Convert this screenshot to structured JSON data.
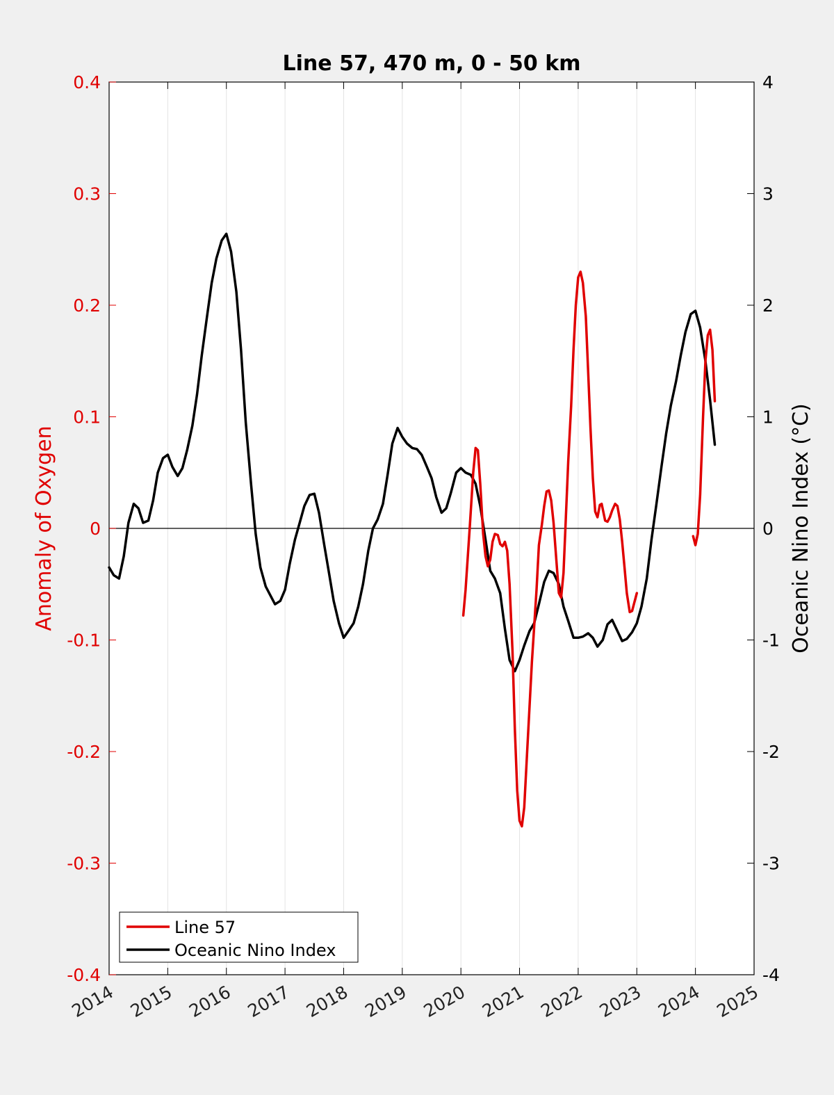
{
  "chart_data": {
    "type": "line",
    "title": "Line 57, 470 m, 0 - 50 km",
    "ylabel_left": "Anomaly of Oxygen",
    "ylabel_right": "Oceanic Nino Index (°C)",
    "xlim": [
      2014,
      2025
    ],
    "ylim_left": [
      -0.4,
      0.4
    ],
    "ylim_right": [
      -4,
      4
    ],
    "x_ticks": [
      2014,
      2015,
      2016,
      2017,
      2018,
      2019,
      2020,
      2021,
      2022,
      2023,
      2024,
      2025
    ],
    "y_ticks_left": [
      "-0.4",
      "-0.3",
      "-0.2",
      "-0.1",
      "0",
      "0.1",
      "0.2",
      "0.3",
      "0.4"
    ],
    "y_ticks_right": [
      "-4",
      "-3",
      "-2",
      "-1",
      "0",
      "1",
      "2",
      "3",
      "4"
    ],
    "grid": "vertical lines at x ticks",
    "zero_line": true,
    "legend_position": "bottom-left",
    "colors": {
      "oxygen": "#e00000",
      "oni": "#000000",
      "left_axis": "#e00000"
    },
    "series": [
      {
        "name": "Line 57",
        "axis": "left",
        "color": "#e00000",
        "segments": [
          [
            [
              2020.04,
              -0.078
            ],
            [
              2020.08,
              -0.055
            ],
            [
              2020.15,
              0.0
            ],
            [
              2020.21,
              0.05
            ],
            [
              2020.25,
              0.072
            ],
            [
              2020.29,
              0.07
            ],
            [
              2020.33,
              0.04
            ],
            [
              2020.38,
              -0.005
            ],
            [
              2020.42,
              -0.025
            ],
            [
              2020.46,
              -0.034
            ],
            [
              2020.5,
              -0.028
            ],
            [
              2020.54,
              -0.012
            ],
            [
              2020.58,
              -0.005
            ],
            [
              2020.63,
              -0.006
            ],
            [
              2020.67,
              -0.014
            ],
            [
              2020.71,
              -0.016
            ],
            [
              2020.75,
              -0.012
            ],
            [
              2020.79,
              -0.02
            ],
            [
              2020.83,
              -0.05
            ],
            [
              2020.88,
              -0.11
            ],
            [
              2020.92,
              -0.18
            ],
            [
              2020.96,
              -0.235
            ],
            [
              2021.0,
              -0.262
            ],
            [
              2021.04,
              -0.267
            ],
            [
              2021.08,
              -0.25
            ],
            [
              2021.13,
              -0.2
            ],
            [
              2021.21,
              -0.12
            ],
            [
              2021.29,
              -0.055
            ],
            [
              2021.33,
              -0.015
            ],
            [
              2021.38,
              0.003
            ],
            [
              2021.42,
              0.02
            ],
            [
              2021.46,
              0.033
            ],
            [
              2021.5,
              0.034
            ],
            [
              2021.54,
              0.025
            ],
            [
              2021.58,
              0.005
            ],
            [
              2021.63,
              -0.03
            ],
            [
              2021.67,
              -0.058
            ],
            [
              2021.71,
              -0.062
            ],
            [
              2021.75,
              -0.04
            ],
            [
              2021.79,
              0.01
            ],
            [
              2021.83,
              0.06
            ],
            [
              2021.88,
              0.11
            ],
            [
              2021.92,
              0.16
            ],
            [
              2021.96,
              0.2
            ],
            [
              2022.0,
              0.225
            ],
            [
              2022.04,
              0.23
            ],
            [
              2022.08,
              0.22
            ],
            [
              2022.13,
              0.19
            ],
            [
              2022.17,
              0.14
            ],
            [
              2022.21,
              0.09
            ],
            [
              2022.25,
              0.045
            ],
            [
              2022.29,
              0.015
            ],
            [
              2022.33,
              0.01
            ],
            [
              2022.37,
              0.021
            ],
            [
              2022.4,
              0.022
            ],
            [
              2022.46,
              0.007
            ],
            [
              2022.5,
              0.006
            ],
            [
              2022.54,
              0.01
            ],
            [
              2022.58,
              0.016
            ],
            [
              2022.63,
              0.022
            ],
            [
              2022.67,
              0.02
            ],
            [
              2022.71,
              0.008
            ],
            [
              2022.75,
              -0.012
            ],
            [
              2022.79,
              -0.035
            ],
            [
              2022.83,
              -0.058
            ],
            [
              2022.88,
              -0.075
            ],
            [
              2022.92,
              -0.074
            ],
            [
              2022.96,
              -0.066
            ],
            [
              2023.0,
              -0.058
            ]
          ],
          [
            [
              2023.96,
              -0.007
            ],
            [
              2024.0,
              -0.015
            ],
            [
              2024.04,
              -0.005
            ],
            [
              2024.08,
              0.03
            ],
            [
              2024.13,
              0.1
            ],
            [
              2024.17,
              0.15
            ],
            [
              2024.21,
              0.173
            ],
            [
              2024.25,
              0.178
            ],
            [
              2024.29,
              0.16
            ],
            [
              2024.33,
              0.114
            ]
          ]
        ]
      },
      {
        "name": "Oceanic Nino Index",
        "axis": "right",
        "color": "#000000",
        "points": [
          [
            2014.0,
            -0.35
          ],
          [
            2014.08,
            -0.42
          ],
          [
            2014.17,
            -0.45
          ],
          [
            2014.25,
            -0.25
          ],
          [
            2014.33,
            0.05
          ],
          [
            2014.42,
            0.22
          ],
          [
            2014.5,
            0.18
          ],
          [
            2014.58,
            0.05
          ],
          [
            2014.67,
            0.07
          ],
          [
            2014.75,
            0.25
          ],
          [
            2014.83,
            0.5
          ],
          [
            2014.92,
            0.63
          ],
          [
            2015.0,
            0.66
          ],
          [
            2015.08,
            0.55
          ],
          [
            2015.17,
            0.47
          ],
          [
            2015.25,
            0.54
          ],
          [
            2015.33,
            0.7
          ],
          [
            2015.42,
            0.92
          ],
          [
            2015.5,
            1.2
          ],
          [
            2015.58,
            1.55
          ],
          [
            2015.67,
            1.9
          ],
          [
            2015.75,
            2.2
          ],
          [
            2015.83,
            2.42
          ],
          [
            2015.92,
            2.58
          ],
          [
            2016.0,
            2.64
          ],
          [
            2016.08,
            2.48
          ],
          [
            2016.17,
            2.12
          ],
          [
            2016.25,
            1.6
          ],
          [
            2016.33,
            0.95
          ],
          [
            2016.42,
            0.4
          ],
          [
            2016.5,
            -0.05
          ],
          [
            2016.58,
            -0.35
          ],
          [
            2016.67,
            -0.52
          ],
          [
            2016.75,
            -0.6
          ],
          [
            2016.83,
            -0.68
          ],
          [
            2016.92,
            -0.65
          ],
          [
            2017.0,
            -0.55
          ],
          [
            2017.08,
            -0.32
          ],
          [
            2017.17,
            -0.1
          ],
          [
            2017.25,
            0.05
          ],
          [
            2017.33,
            0.2
          ],
          [
            2017.42,
            0.3
          ],
          [
            2017.5,
            0.31
          ],
          [
            2017.58,
            0.14
          ],
          [
            2017.67,
            -0.15
          ],
          [
            2017.75,
            -0.4
          ],
          [
            2017.83,
            -0.65
          ],
          [
            2017.92,
            -0.85
          ],
          [
            2018.0,
            -0.98
          ],
          [
            2018.08,
            -0.92
          ],
          [
            2018.17,
            -0.85
          ],
          [
            2018.25,
            -0.7
          ],
          [
            2018.33,
            -0.5
          ],
          [
            2018.42,
            -0.2
          ],
          [
            2018.5,
            0.0
          ],
          [
            2018.58,
            0.08
          ],
          [
            2018.67,
            0.22
          ],
          [
            2018.75,
            0.48
          ],
          [
            2018.83,
            0.76
          ],
          [
            2018.92,
            0.9
          ],
          [
            2019.0,
            0.82
          ],
          [
            2019.08,
            0.76
          ],
          [
            2019.17,
            0.72
          ],
          [
            2019.25,
            0.71
          ],
          [
            2019.33,
            0.66
          ],
          [
            2019.42,
            0.55
          ],
          [
            2019.5,
            0.45
          ],
          [
            2019.58,
            0.28
          ],
          [
            2019.67,
            0.14
          ],
          [
            2019.75,
            0.18
          ],
          [
            2019.83,
            0.32
          ],
          [
            2019.92,
            0.5
          ],
          [
            2020.0,
            0.54
          ],
          [
            2020.08,
            0.5
          ],
          [
            2020.17,
            0.48
          ],
          [
            2020.25,
            0.4
          ],
          [
            2020.33,
            0.2
          ],
          [
            2020.42,
            -0.1
          ],
          [
            2020.5,
            -0.38
          ],
          [
            2020.58,
            -0.45
          ],
          [
            2020.67,
            -0.58
          ],
          [
            2020.75,
            -0.9
          ],
          [
            2020.83,
            -1.18
          ],
          [
            2020.92,
            -1.28
          ],
          [
            2021.0,
            -1.18
          ],
          [
            2021.08,
            -1.05
          ],
          [
            2021.17,
            -0.92
          ],
          [
            2021.25,
            -0.85
          ],
          [
            2021.33,
            -0.68
          ],
          [
            2021.42,
            -0.48
          ],
          [
            2021.5,
            -0.38
          ],
          [
            2021.58,
            -0.4
          ],
          [
            2021.67,
            -0.5
          ],
          [
            2021.75,
            -0.7
          ],
          [
            2021.83,
            -0.83
          ],
          [
            2021.92,
            -0.98
          ],
          [
            2022.0,
            -0.98
          ],
          [
            2022.08,
            -0.97
          ],
          [
            2022.17,
            -0.94
          ],
          [
            2022.25,
            -0.98
          ],
          [
            2022.33,
            -1.06
          ],
          [
            2022.42,
            -1.0
          ],
          [
            2022.5,
            -0.86
          ],
          [
            2022.58,
            -0.82
          ],
          [
            2022.67,
            -0.92
          ],
          [
            2022.75,
            -1.01
          ],
          [
            2022.83,
            -0.99
          ],
          [
            2022.92,
            -0.93
          ],
          [
            2023.0,
            -0.85
          ],
          [
            2023.08,
            -0.7
          ],
          [
            2023.17,
            -0.45
          ],
          [
            2023.25,
            -0.1
          ],
          [
            2023.33,
            0.2
          ],
          [
            2023.42,
            0.55
          ],
          [
            2023.5,
            0.85
          ],
          [
            2023.58,
            1.1
          ],
          [
            2023.67,
            1.32
          ],
          [
            2023.75,
            1.55
          ],
          [
            2023.83,
            1.76
          ],
          [
            2023.92,
            1.92
          ],
          [
            2024.0,
            1.95
          ],
          [
            2024.08,
            1.8
          ],
          [
            2024.17,
            1.5
          ],
          [
            2024.25,
            1.15
          ],
          [
            2024.33,
            0.75
          ]
        ]
      }
    ]
  }
}
